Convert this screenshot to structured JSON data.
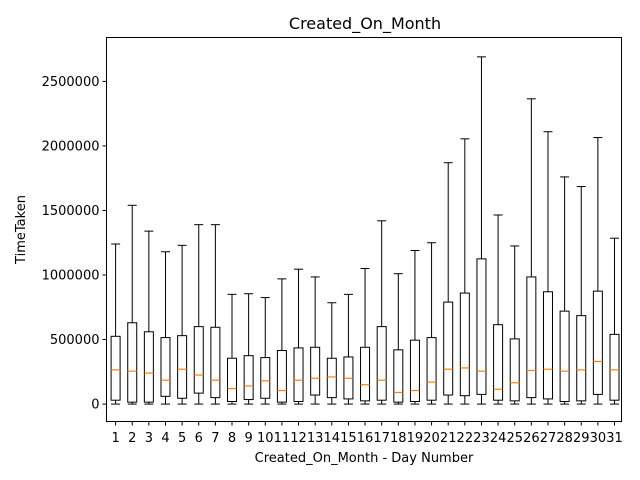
{
  "chart_data": {
    "type": "box",
    "title": "Created_On_Month",
    "xlabel": "Created_On_Month - Day Number",
    "ylabel": "TimeTaken",
    "categories": [
      "1",
      "2",
      "3",
      "4",
      "5",
      "6",
      "7",
      "8",
      "9",
      "10",
      "11",
      "12",
      "13",
      "14",
      "15",
      "16",
      "17",
      "18",
      "19",
      "20",
      "21",
      "22",
      "23",
      "24",
      "25",
      "26",
      "27",
      "28",
      "29",
      "30",
      "31"
    ],
    "boxes": [
      {
        "whisker_low": 0,
        "q1": 30000,
        "median": 265000,
        "q3": 525000,
        "whisker_high": 1240000
      },
      {
        "whisker_low": 0,
        "q1": 15000,
        "median": 255000,
        "q3": 630000,
        "whisker_high": 1540000
      },
      {
        "whisker_low": 0,
        "q1": 15000,
        "median": 240000,
        "q3": 560000,
        "whisker_high": 1340000
      },
      {
        "whisker_low": 0,
        "q1": 60000,
        "median": 185000,
        "q3": 515000,
        "whisker_high": 1180000
      },
      {
        "whisker_low": 0,
        "q1": 45000,
        "median": 270000,
        "q3": 530000,
        "whisker_high": 1230000
      },
      {
        "whisker_low": 0,
        "q1": 85000,
        "median": 225000,
        "q3": 600000,
        "whisker_high": 1390000
      },
      {
        "whisker_low": 0,
        "q1": 50000,
        "median": 185000,
        "q3": 595000,
        "whisker_high": 1390000
      },
      {
        "whisker_low": 0,
        "q1": 20000,
        "median": 120000,
        "q3": 355000,
        "whisker_high": 850000
      },
      {
        "whisker_low": 0,
        "q1": 35000,
        "median": 140000,
        "q3": 375000,
        "whisker_high": 855000
      },
      {
        "whisker_low": 0,
        "q1": 45000,
        "median": 180000,
        "q3": 360000,
        "whisker_high": 825000
      },
      {
        "whisker_low": 0,
        "q1": 15000,
        "median": 105000,
        "q3": 415000,
        "whisker_high": 970000
      },
      {
        "whisker_low": 0,
        "q1": 20000,
        "median": 185000,
        "q3": 435000,
        "whisker_high": 1045000
      },
      {
        "whisker_low": 0,
        "q1": 70000,
        "median": 200000,
        "q3": 440000,
        "whisker_high": 985000
      },
      {
        "whisker_low": 0,
        "q1": 50000,
        "median": 210000,
        "q3": 355000,
        "whisker_high": 785000
      },
      {
        "whisker_low": 0,
        "q1": 40000,
        "median": 200000,
        "q3": 365000,
        "whisker_high": 850000
      },
      {
        "whisker_low": 0,
        "q1": 25000,
        "median": 150000,
        "q3": 440000,
        "whisker_high": 1050000
      },
      {
        "whisker_low": 0,
        "q1": 30000,
        "median": 185000,
        "q3": 600000,
        "whisker_high": 1420000
      },
      {
        "whisker_low": 0,
        "q1": 15000,
        "median": 90000,
        "q3": 420000,
        "whisker_high": 1010000
      },
      {
        "whisker_low": 0,
        "q1": 20000,
        "median": 105000,
        "q3": 495000,
        "whisker_high": 1190000
      },
      {
        "whisker_low": 0,
        "q1": 30000,
        "median": 170000,
        "q3": 515000,
        "whisker_high": 1250000
      },
      {
        "whisker_low": 0,
        "q1": 70000,
        "median": 270000,
        "q3": 790000,
        "whisker_high": 1870000
      },
      {
        "whisker_low": 0,
        "q1": 65000,
        "median": 280000,
        "q3": 860000,
        "whisker_high": 2055000
      },
      {
        "whisker_low": 0,
        "q1": 75000,
        "median": 255000,
        "q3": 1125000,
        "whisker_high": 2690000
      },
      {
        "whisker_low": 0,
        "q1": 30000,
        "median": 115000,
        "q3": 615000,
        "whisker_high": 1465000
      },
      {
        "whisker_low": 0,
        "q1": 25000,
        "median": 165000,
        "q3": 505000,
        "whisker_high": 1225000
      },
      {
        "whisker_low": 0,
        "q1": 50000,
        "median": 260000,
        "q3": 985000,
        "whisker_high": 2365000
      },
      {
        "whisker_low": 0,
        "q1": 40000,
        "median": 270000,
        "q3": 870000,
        "whisker_high": 2110000
      },
      {
        "whisker_low": 0,
        "q1": 20000,
        "median": 255000,
        "q3": 720000,
        "whisker_high": 1760000
      },
      {
        "whisker_low": 0,
        "q1": 25000,
        "median": 265000,
        "q3": 685000,
        "whisker_high": 1685000
      },
      {
        "whisker_low": 0,
        "q1": 75000,
        "median": 330000,
        "q3": 875000,
        "whisker_high": 2065000
      },
      {
        "whisker_low": 0,
        "q1": 30000,
        "median": 265000,
        "q3": 540000,
        "whisker_high": 1285000
      }
    ],
    "yticks": [
      0,
      500000,
      1000000,
      1500000,
      2000000,
      2500000
    ],
    "ylim": [
      -135000,
      2840000
    ],
    "grid": false,
    "colors": {
      "box": "#000000",
      "median": "#ff7f0e",
      "whisker": "#000000"
    }
  }
}
